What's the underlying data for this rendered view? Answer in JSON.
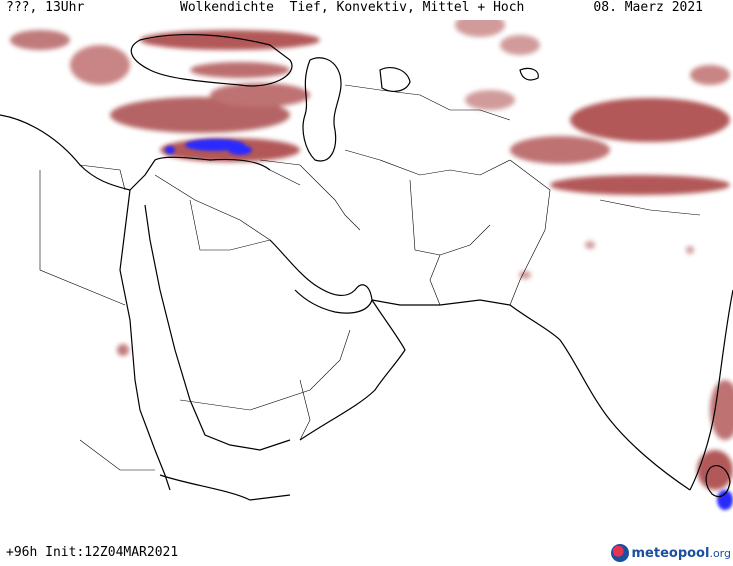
{
  "header": {
    "left": "???, 13Uhr",
    "title": "Wolkendichte  Tief, Konvektiv, Mittel + Hoch",
    "date": "08. Maerz 2021"
  },
  "footer": {
    "run_info": "+96h Init:12Z04MAR2021",
    "logo_name": "meteopool",
    "logo_tld": ".org"
  },
  "legend_colors": {
    "cloud_low": "#c98a8a",
    "cloud_high": "#a53a3a",
    "convective": "#2b2bff"
  }
}
